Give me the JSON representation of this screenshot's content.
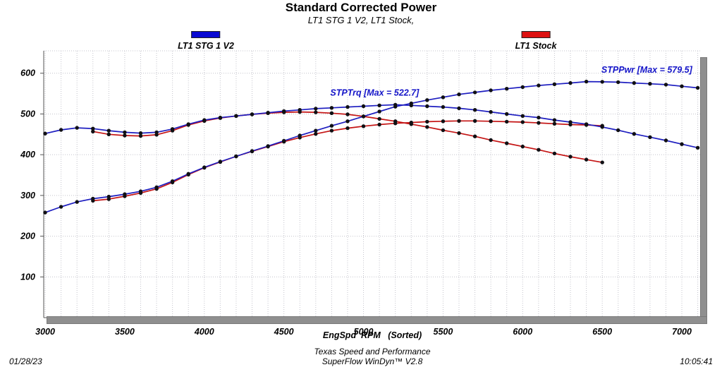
{
  "header": {
    "title": "Standard Corrected Power",
    "subtitle": "LT1 STG 1 V2, LT1 Stock,"
  },
  "legend": {
    "items": [
      {
        "label": "LT1 STG 1 V2",
        "color": "#0a0ad2"
      },
      {
        "label": "LT1 Stock",
        "color": "#dd1111"
      }
    ]
  },
  "footer": {
    "date": "01/28/23",
    "shop": "Texas Speed and Performance",
    "software": "SuperFlow WinDyn™ V2.8",
    "time": "10:05:41"
  },
  "chart_data": {
    "type": "line",
    "title": "Standard Corrected Power",
    "subtitle": "LT1 STG 1 V2, LT1 Stock,",
    "xlabel": "EngSpd  RPM   (Sorted)",
    "ylabel": "",
    "xlim": [
      2991,
      7115
    ],
    "ylim": [
      0,
      655
    ],
    "x_ticks": [
      3000,
      3500,
      4000,
      4500,
      5000,
      5500,
      6000,
      6500,
      7000
    ],
    "y_ticks": [
      100,
      200,
      300,
      400,
      500,
      600
    ],
    "x_grid_step": 100,
    "grid": "dotted",
    "legend_position": "top",
    "marker_color": "#101014",
    "grid_color": "#c4c4cc",
    "axis_color": "#555555",
    "annotations": [
      {
        "text": "STPTrq [Max = 522.7]",
        "x": 5070,
        "y": 545,
        "color": "#1414c8"
      },
      {
        "text": "STPPwr [Max = 579.5]",
        "x": 6780,
        "y": 601,
        "color": "#1414c8"
      }
    ],
    "series": [
      {
        "name": "STPTrq LT1 Stock",
        "color": "#c41414",
        "x": [
          3300,
          3400,
          3500,
          3600,
          3700,
          3800,
          3900,
          4000,
          4100,
          4200,
          4300,
          4400,
          4500,
          4600,
          4700,
          4800,
          4900,
          5000,
          5100,
          5200,
          5300,
          5400,
          5500,
          5600,
          5700,
          5800,
          5900,
          6000,
          6100,
          6200,
          6300,
          6400,
          6500
        ],
        "values": [
          457,
          450,
          447,
          446,
          449,
          459,
          473,
          483,
          490,
          495,
          499,
          502,
          504,
          505,
          504,
          502,
          499,
          494,
          488,
          482,
          475,
          468,
          460,
          453,
          445,
          436,
          428,
          420,
          412,
          403,
          395,
          388,
          381
        ]
      },
      {
        "name": "STPPwr LT1 Stock",
        "color": "#c41414",
        "x": [
          3300,
          3400,
          3500,
          3600,
          3700,
          3800,
          3900,
          4000,
          4100,
          4200,
          4300,
          4400,
          4500,
          4600,
          4700,
          4800,
          4900,
          5000,
          5100,
          5200,
          5300,
          5400,
          5500,
          5600,
          5700,
          5800,
          5900,
          6000,
          6100,
          6200,
          6300,
          6400,
          6500
        ],
        "values": [
          287,
          291,
          298,
          306,
          316,
          332,
          351,
          368,
          382,
          396,
          408,
          420,
          432,
          442,
          451,
          459,
          465,
          470,
          474,
          477,
          479,
          481,
          482,
          483,
          483,
          482,
          481,
          480,
          478,
          476,
          474,
          473,
          471
        ]
      },
      {
        "name": "STPTrq LT1 STG 1 V2",
        "color": "#1e1ec0",
        "x": [
          3000,
          3100,
          3200,
          3300,
          3400,
          3500,
          3600,
          3700,
          3800,
          3900,
          4000,
          4100,
          4200,
          4300,
          4400,
          4500,
          4600,
          4700,
          4800,
          4900,
          5000,
          5100,
          5200,
          5300,
          5400,
          5500,
          5600,
          5700,
          5800,
          5900,
          6000,
          6100,
          6200,
          6300,
          6400,
          6500,
          6600,
          6700,
          6800,
          6900,
          7000,
          7100
        ],
        "values": [
          452,
          461,
          466,
          464,
          459,
          455,
          453,
          455,
          463,
          475,
          485,
          491,
          495,
          499,
          503,
          507,
          510,
          513,
          515,
          517,
          519,
          521,
          522.7,
          521,
          519,
          517,
          514,
          510,
          505,
          500,
          495,
          491,
          485,
          480,
          475,
          468,
          460,
          451,
          443,
          435,
          426,
          417
        ]
      },
      {
        "name": "STPPwr LT1 STG 1 V2",
        "color": "#1e1ec0",
        "x": [
          3000,
          3100,
          3200,
          3300,
          3400,
          3500,
          3600,
          3700,
          3800,
          3900,
          4000,
          4100,
          4200,
          4300,
          4400,
          4500,
          4600,
          4700,
          4800,
          4900,
          5000,
          5100,
          5200,
          5300,
          5400,
          5500,
          5600,
          5700,
          5800,
          5900,
          6000,
          6100,
          6200,
          6300,
          6400,
          6500,
          6600,
          6700,
          6800,
          6900,
          7000,
          7100
        ],
        "values": [
          258,
          272,
          284,
          292,
          297,
          303,
          310,
          320,
          335,
          353,
          369,
          383,
          396,
          409,
          421,
          434,
          447,
          459,
          471,
          482,
          494,
          506,
          518,
          526,
          534,
          541,
          548,
          553,
          558,
          562,
          566,
          570,
          573,
          576,
          579.5,
          579,
          578,
          576,
          574,
          572,
          568,
          564
        ]
      }
    ]
  }
}
